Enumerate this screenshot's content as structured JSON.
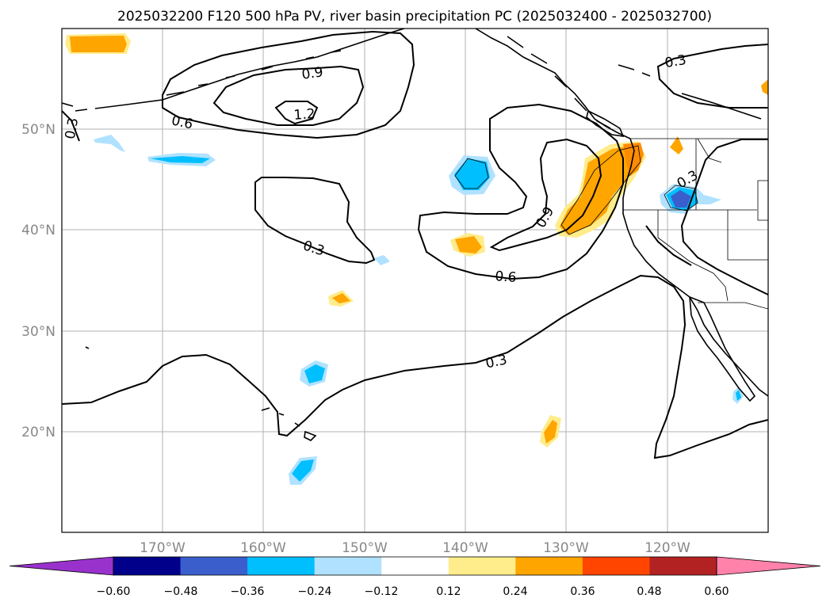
{
  "title": "2025032200 F120 500 hPa PV, river basin precipitation PC (2025032400 - 2025032700)",
  "lon_ticks": [
    "170°W",
    "160°W",
    "150°W",
    "140°W",
    "130°W",
    "120°W"
  ],
  "lat_ticks": [
    "50°N",
    "40°N",
    "30°N",
    "20°N"
  ],
  "contour_labels": [
    "0.3",
    "0.6",
    "0.9",
    "1.2",
    "0.3",
    "0.6",
    "0.9",
    "0.3",
    "0.3",
    "0.3"
  ],
  "colorbar": {
    "colors": [
      "#9932cc",
      "#00008b",
      "#3a5fcd",
      "#00bfff",
      "#b0e2ff",
      "#ffffff",
      "#ffec8b",
      "#ffa500",
      "#ff4500",
      "#b22222",
      "#ff82ab"
    ],
    "ticks": [
      "−0.60",
      "−0.48",
      "−0.36",
      "−0.24",
      "−0.12",
      "0.12",
      "0.24",
      "0.36",
      "0.48",
      "0.60"
    ]
  },
  "map": {
    "region": "North Pacific / West coast of North America",
    "lon_range": [
      -180,
      -110
    ],
    "lat_range": [
      10,
      60
    ],
    "pv_contour_levels": [
      0.3,
      0.6,
      0.9,
      1.2
    ],
    "pc_shading_levels": [
      -0.6,
      -0.48,
      -0.36,
      -0.24,
      -0.12,
      0.12,
      0.24,
      0.36,
      0.48,
      0.6
    ]
  }
}
